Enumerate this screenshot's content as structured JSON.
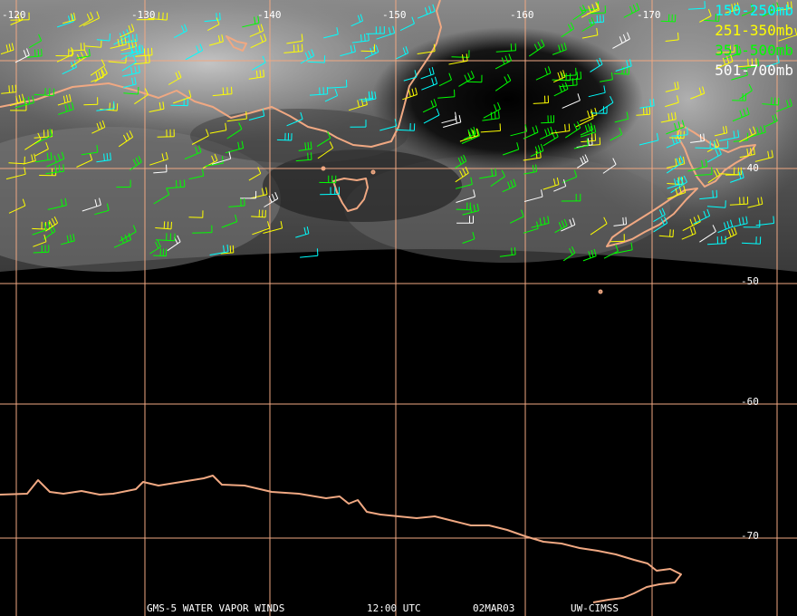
{
  "map": {
    "grid_color": "#f0a882",
    "coast_color": "#f0a882",
    "longitude_labels": [
      "-120",
      "-130",
      "-140",
      "-150",
      "-160",
      "-170"
    ],
    "latitude_labels": [
      "-40",
      "-50",
      "-60",
      "-70"
    ]
  },
  "legend": [
    {
      "label": "150-250mb",
      "color": "#00ffff"
    },
    {
      "label": "251-350mb",
      "color": "#ffff00"
    },
    {
      "label": "351-500mb",
      "color": "#00ff00"
    },
    {
      "label": "501-700mb",
      "color": "#ffffff"
    }
  ],
  "footer": {
    "product": "GMS-5 WATER VAPOR WINDS",
    "time": "12:00 UTC",
    "date": "02MAR03",
    "source": "UW-CIMSS"
  }
}
